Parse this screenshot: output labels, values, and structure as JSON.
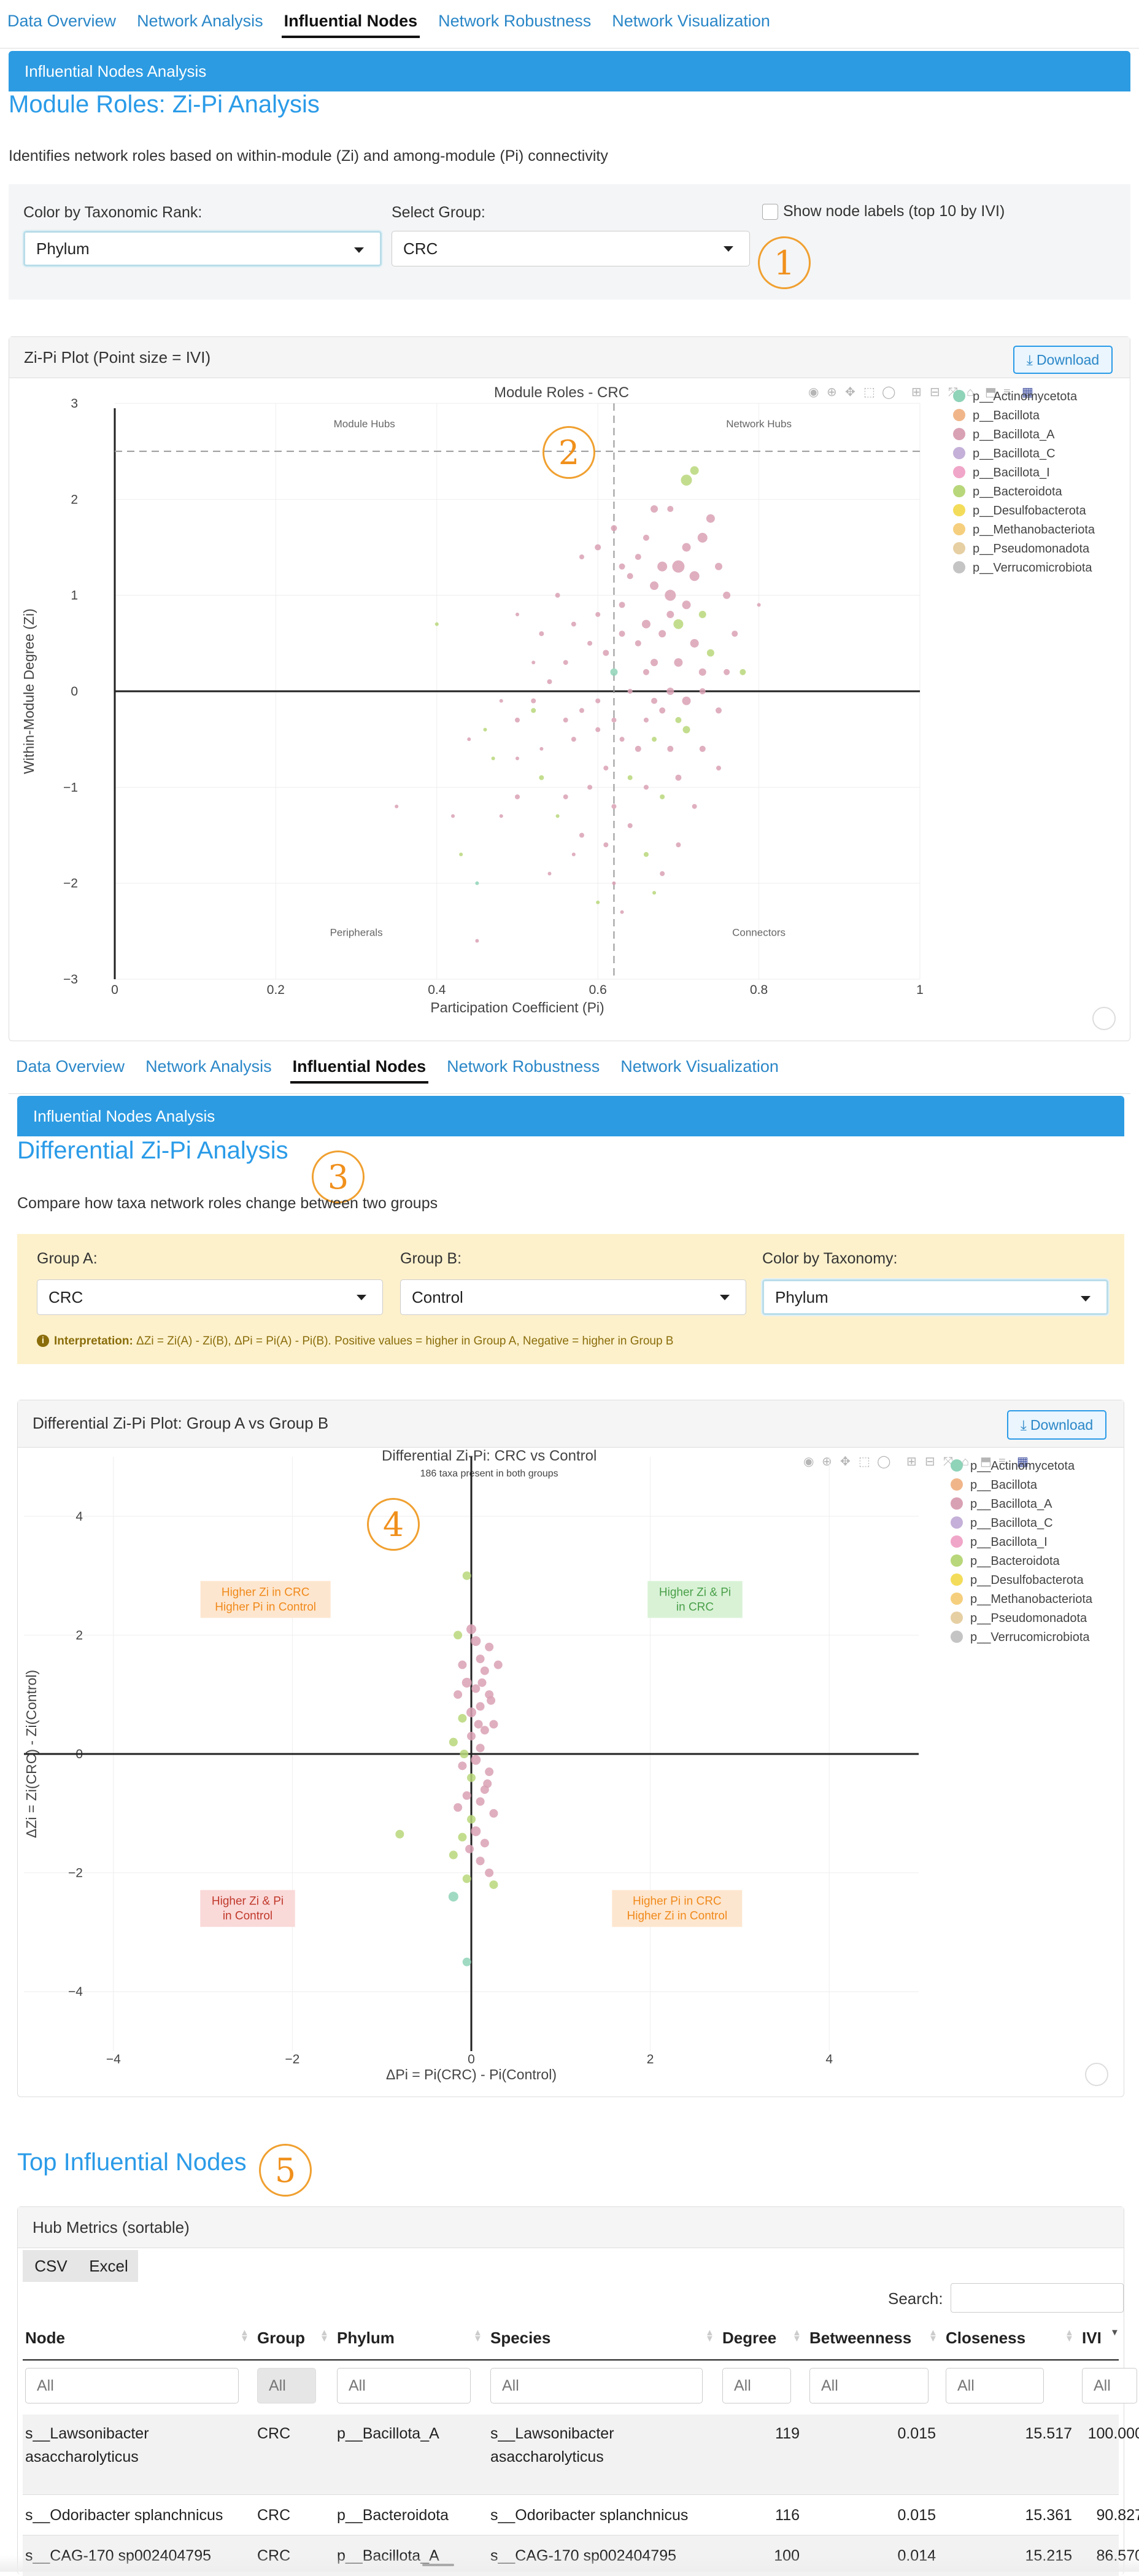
{
  "nav": {
    "tabs": [
      "Data Overview",
      "Network Analysis",
      "Influential Nodes",
      "Network Robustness",
      "Network Visualization"
    ],
    "active": "Influential Nodes"
  },
  "panel1": {
    "bar_title": "Influential Nodes Analysis",
    "title": "Module Roles: Zi-Pi Analysis",
    "description": "Identifies network roles based on within-module (Zi) and among-module (Pi) connectivity",
    "color_label": "Color by Taxonomic Rank:",
    "color_value": "Phylum",
    "group_label": "Select Group:",
    "group_value": "CRC",
    "show_labels": "Show node labels (top 10 by IVI)",
    "badge": "1",
    "card_title": "Zi-Pi Plot (Point size = IVI)",
    "download": "Download",
    "badge_plot": "2"
  },
  "panel2": {
    "bar_title": "Influential Nodes Analysis",
    "title": "Differential Zi-Pi Analysis",
    "badge": "3",
    "description": "Compare how taxa network roles change between two groups",
    "group_a_label": "Group A:",
    "group_a_value": "CRC",
    "group_b_label": "Group B:",
    "group_b_value": "Control",
    "color_label": "Color by Taxonomy:",
    "color_value": "Phylum",
    "interp_bold": "Interpretation:",
    "interp_text": " ΔZi = Zi(A) - Zi(B), ΔPi = Pi(A) - Pi(B). Positive values = higher in Group A, Negative = higher in Group B",
    "card_title": "Differential Zi-Pi Plot: Group A vs Group B",
    "download": "Download",
    "badge_plot": "4"
  },
  "panel3": {
    "title": "Top Influential Nodes",
    "badge": "5",
    "card_title": "Hub Metrics (sortable)",
    "csv": "CSV",
    "excel": "Excel",
    "search_label": "Search:",
    "columns": [
      "Node",
      "Group",
      "Phylum",
      "Species",
      "Degree",
      "Betweenness",
      "Closeness",
      "IVI"
    ],
    "filter_placeholder": "All",
    "rows": [
      {
        "node": "s__Lawsonibacter asaccharolyticus",
        "group": "CRC",
        "phylum": "p__Bacillota_A",
        "species": "s__Lawsonibacter asaccharolyticus",
        "degree": "119",
        "betweenness": "0.015",
        "closeness": "15.517",
        "ivi": "100.000"
      },
      {
        "node": "s__Odoribacter splanchnicus",
        "group": "CRC",
        "phylum": "p__Bacteroidota",
        "species": "s__Odoribacter splanchnicus",
        "degree": "116",
        "betweenness": "0.015",
        "closeness": "15.361",
        "ivi": "90.827"
      },
      {
        "node": "s__CAG-170 sp002404795",
        "group": "CRC",
        "phylum": "p__Bacillota_A",
        "species": "s__CAG-170 sp002404795",
        "degree": "100",
        "betweenness": "0.014",
        "closeness": "15.215",
        "ivi": "86.570"
      }
    ]
  },
  "legend": [
    {
      "name": "p__Actinomycetota",
      "color": "#8fd3b9"
    },
    {
      "name": "p__Bacillota",
      "color": "#f0b68a"
    },
    {
      "name": "p__Bacillota_A",
      "color": "#d9a1b4"
    },
    {
      "name": "p__Bacillota_C",
      "color": "#c4b0d8"
    },
    {
      "name": "p__Bacillota_I",
      "color": "#f0a6c8"
    },
    {
      "name": "p__Bacteroidota",
      "color": "#b8d77a"
    },
    {
      "name": "p__Desulfobacterota",
      "color": "#f3dc5a"
    },
    {
      "name": "p__Methanobacteriota",
      "color": "#f5cf7e"
    },
    {
      "name": "p__Pseudomonadota",
      "color": "#e6cfa3"
    },
    {
      "name": "p__Verrucomicrobiota",
      "color": "#c4c4c4"
    }
  ],
  "chart_data": [
    {
      "type": "scatter",
      "title": "Module Roles - CRC",
      "xlabel": "Participation Coefficient (Pi)",
      "ylabel": "Within-Module Degree (Zi)",
      "xlim": [
        0,
        1
      ],
      "ylim": [
        -3,
        3
      ],
      "xticks": [
        "0",
        "0.2",
        "0.4",
        "0.6",
        "0.8",
        "1"
      ],
      "yticks": [
        "3",
        "2",
        "1",
        "0",
        "−1",
        "−2",
        "−3"
      ],
      "zi_threshold": 2.5,
      "pi_threshold": 0.62,
      "quadrant_labels": [
        "Module Hubs",
        "Network Hubs",
        "Peripherals",
        "Connectors"
      ],
      "points": [
        [
          0.72,
          2.3,
          5,
          12
        ],
        [
          0.71,
          2.2,
          5,
          16
        ],
        [
          0.62,
          1.7,
          2,
          8
        ],
        [
          0.6,
          1.5,
          2,
          8
        ],
        [
          0.69,
          1.9,
          2,
          8
        ],
        [
          0.74,
          1.8,
          2,
          12
        ],
        [
          0.73,
          1.6,
          2,
          14
        ],
        [
          0.66,
          1.6,
          2,
          8
        ],
        [
          0.71,
          1.5,
          2,
          12
        ],
        [
          0.68,
          1.3,
          2,
          14
        ],
        [
          0.7,
          1.3,
          2,
          18
        ],
        [
          0.72,
          1.2,
          2,
          14
        ],
        [
          0.75,
          1.3,
          2,
          10
        ],
        [
          0.67,
          1.1,
          2,
          12
        ],
        [
          0.64,
          1.2,
          2,
          8
        ],
        [
          0.69,
          1.0,
          2,
          16
        ],
        [
          0.71,
          0.9,
          2,
          12
        ],
        [
          0.73,
          0.8,
          5,
          10
        ],
        [
          0.76,
          1.0,
          2,
          10
        ],
        [
          0.63,
          0.9,
          2,
          8
        ],
        [
          0.66,
          0.7,
          2,
          12
        ],
        [
          0.68,
          0.6,
          2,
          10
        ],
        [
          0.7,
          0.7,
          5,
          14
        ],
        [
          0.72,
          0.5,
          2,
          12
        ],
        [
          0.74,
          0.4,
          5,
          10
        ],
        [
          0.65,
          0.5,
          2,
          8
        ],
        [
          0.67,
          0.3,
          2,
          10
        ],
        [
          0.7,
          0.3,
          2,
          12
        ],
        [
          0.73,
          0.2,
          2,
          10
        ],
        [
          0.61,
          0.4,
          2,
          8
        ],
        [
          0.63,
          0.6,
          2,
          8
        ],
        [
          0.77,
          0.6,
          2,
          8
        ],
        [
          0.76,
          0.2,
          2,
          8
        ],
        [
          0.58,
          1.4,
          2,
          6
        ],
        [
          0.55,
          1.0,
          2,
          6
        ],
        [
          0.57,
          0.7,
          2,
          6
        ],
        [
          0.6,
          0.8,
          2,
          6
        ],
        [
          0.59,
          0.5,
          2,
          6
        ],
        [
          0.53,
          0.6,
          2,
          6
        ],
        [
          0.56,
          0.3,
          2,
          6
        ],
        [
          0.54,
          0.1,
          2,
          6
        ],
        [
          0.69,
          0.8,
          2,
          10
        ],
        [
          0.66,
          0.2,
          2,
          8
        ],
        [
          0.62,
          0.2,
          0,
          10
        ],
        [
          0.64,
          0.0,
          2,
          6
        ],
        [
          0.67,
          -0.1,
          2,
          8
        ],
        [
          0.69,
          0.0,
          2,
          10
        ],
        [
          0.71,
          -0.1,
          2,
          12
        ],
        [
          0.73,
          0.0,
          2,
          8
        ],
        [
          0.75,
          -0.2,
          2,
          8
        ],
        [
          0.7,
          -0.3,
          5,
          8
        ],
        [
          0.68,
          -0.2,
          2,
          8
        ],
        [
          0.66,
          -0.3,
          2,
          6
        ],
        [
          0.62,
          -0.3,
          2,
          6
        ],
        [
          0.6,
          -0.1,
          2,
          6
        ],
        [
          0.58,
          -0.2,
          2,
          6
        ],
        [
          0.56,
          -0.3,
          2,
          6
        ],
        [
          0.52,
          -0.2,
          5,
          6
        ],
        [
          0.5,
          -0.3,
          2,
          6
        ],
        [
          0.48,
          -0.1,
          2,
          4
        ],
        [
          0.46,
          -0.4,
          5,
          4
        ],
        [
          0.44,
          -0.5,
          2,
          4
        ],
        [
          0.47,
          -0.7,
          5,
          4
        ],
        [
          0.5,
          -0.7,
          2,
          4
        ],
        [
          0.53,
          -0.6,
          2,
          4
        ],
        [
          0.57,
          -0.5,
          2,
          6
        ],
        [
          0.6,
          -0.4,
          2,
          6
        ],
        [
          0.63,
          -0.5,
          2,
          6
        ],
        [
          0.65,
          -0.6,
          2,
          8
        ],
        [
          0.67,
          -0.5,
          5,
          6
        ],
        [
          0.69,
          -0.6,
          2,
          8
        ],
        [
          0.71,
          -0.4,
          5,
          10
        ],
        [
          0.73,
          -0.6,
          2,
          8
        ],
        [
          0.61,
          -0.8,
          2,
          6
        ],
        [
          0.64,
          -0.9,
          5,
          6
        ],
        [
          0.66,
          -1.0,
          2,
          6
        ],
        [
          0.68,
          -1.1,
          5,
          6
        ],
        [
          0.7,
          -0.9,
          2,
          8
        ],
        [
          0.72,
          -1.2,
          2,
          6
        ],
        [
          0.62,
          -1.2,
          2,
          6
        ],
        [
          0.59,
          -1.0,
          2,
          6
        ],
        [
          0.56,
          -1.1,
          2,
          6
        ],
        [
          0.53,
          -0.9,
          5,
          6
        ],
        [
          0.5,
          -1.1,
          2,
          6
        ],
        [
          0.48,
          -1.3,
          2,
          4
        ],
        [
          0.55,
          -1.3,
          5,
          4
        ],
        [
          0.58,
          -1.5,
          2,
          6
        ],
        [
          0.61,
          -1.6,
          2,
          6
        ],
        [
          0.64,
          -1.4,
          2,
          6
        ],
        [
          0.66,
          -1.7,
          5,
          6
        ],
        [
          0.68,
          -1.9,
          2,
          6
        ],
        [
          0.7,
          -1.6,
          2,
          6
        ],
        [
          0.62,
          -2.0,
          2,
          4
        ],
        [
          0.6,
          -2.2,
          5,
          4
        ],
        [
          0.57,
          -1.7,
          2,
          4
        ],
        [
          0.54,
          -1.9,
          2,
          4
        ],
        [
          0.63,
          -2.3,
          2,
          4
        ],
        [
          0.67,
          -2.1,
          5,
          4
        ],
        [
          0.43,
          -1.7,
          5,
          4
        ],
        [
          0.45,
          -2.0,
          0,
          4
        ],
        [
          0.42,
          -1.3,
          2,
          4
        ],
        [
          0.4,
          0.7,
          5,
          4
        ],
        [
          0.45,
          -2.6,
          2,
          4
        ],
        [
          0.35,
          -1.2,
          2,
          4
        ],
        [
          0.52,
          -0.1,
          2,
          6
        ],
        [
          0.65,
          1.4,
          2,
          8
        ],
        [
          0.67,
          1.9,
          2,
          10
        ],
        [
          0.63,
          1.3,
          2,
          8
        ],
        [
          0.75,
          -0.8,
          2,
          6
        ],
        [
          0.78,
          0.2,
          5,
          8
        ],
        [
          0.8,
          0.9,
          2,
          4
        ],
        [
          0.52,
          0.3,
          2,
          4
        ],
        [
          0.5,
          0.8,
          2,
          4
        ]
      ]
    },
    {
      "type": "scatter",
      "title": "Differential Zi-Pi: CRC vs Control",
      "subtitle": "186 taxa present in both groups",
      "xlabel": "ΔPi = Pi(CRC) - Pi(Control)",
      "ylabel": "ΔZi = Zi(CRC) - Zi(Control)",
      "xlim": [
        -5,
        5
      ],
      "ylim": [
        -5,
        5
      ],
      "xticks": [
        "−4",
        "−2",
        "0",
        "2",
        "4"
      ],
      "yticks": [
        "4",
        "2",
        "0",
        "−2",
        "−4"
      ],
      "quadrant_labels": [
        {
          "lines": [
            "Higher Zi in CRC",
            "Higher Pi in Control"
          ],
          "bg": "#fde6cf",
          "fg": "#f08a1c"
        },
        {
          "lines": [
            "Higher Zi & Pi",
            "in CRC"
          ],
          "bg": "#d9f2d6",
          "fg": "#4aa04a"
        },
        {
          "lines": [
            "Higher Zi & Pi",
            "in Control"
          ],
          "bg": "#fad9d9",
          "fg": "#c0392b"
        },
        {
          "lines": [
            "Higher Pi in CRC",
            "Higher Zi in Control"
          ],
          "bg": "#fde6cf",
          "fg": "#f08a1c"
        }
      ],
      "points": [
        [
          -0.05,
          3.0,
          5,
          8
        ],
        [
          0.0,
          2.1,
          2,
          10
        ],
        [
          -0.15,
          2.0,
          5,
          8
        ],
        [
          0.2,
          1.8,
          2,
          8
        ],
        [
          0.05,
          1.9,
          2,
          10
        ],
        [
          0.1,
          1.6,
          2,
          8
        ],
        [
          -0.1,
          1.5,
          2,
          8
        ],
        [
          0.15,
          1.4,
          2,
          8
        ],
        [
          0.3,
          1.5,
          2,
          8
        ],
        [
          -0.05,
          1.2,
          2,
          10
        ],
        [
          0.05,
          1.1,
          2,
          8
        ],
        [
          0.2,
          1.0,
          2,
          8
        ],
        [
          -0.15,
          1.0,
          2,
          8
        ],
        [
          0.1,
          0.8,
          2,
          8
        ],
        [
          0.0,
          0.7,
          2,
          10
        ],
        [
          -0.1,
          0.6,
          5,
          8
        ],
        [
          0.25,
          0.5,
          2,
          8
        ],
        [
          0.15,
          0.4,
          2,
          8
        ],
        [
          0.0,
          0.3,
          2,
          8
        ],
        [
          -0.2,
          0.2,
          5,
          8
        ],
        [
          0.1,
          0.1,
          2,
          8
        ],
        [
          0.05,
          -0.1,
          2,
          10
        ],
        [
          -0.1,
          -0.2,
          2,
          8
        ],
        [
          0.2,
          -0.3,
          2,
          8
        ],
        [
          0.0,
          -0.4,
          5,
          8
        ],
        [
          0.15,
          -0.6,
          2,
          8
        ],
        [
          -0.05,
          -0.7,
          2,
          8
        ],
        [
          0.1,
          -0.8,
          2,
          8
        ],
        [
          -0.15,
          -0.9,
          2,
          8
        ],
        [
          0.25,
          -1.0,
          2,
          8
        ],
        [
          0.0,
          -1.1,
          5,
          8
        ],
        [
          0.05,
          -1.3,
          2,
          10
        ],
        [
          -0.1,
          -1.4,
          5,
          8
        ],
        [
          0.15,
          -1.5,
          2,
          8
        ],
        [
          -0.2,
          -1.7,
          5,
          8
        ],
        [
          0.1,
          -1.8,
          2,
          8
        ],
        [
          0.2,
          -2.0,
          2,
          8
        ],
        [
          -0.05,
          -2.1,
          5,
          8
        ],
        [
          0.25,
          -2.2,
          5,
          8
        ],
        [
          -0.2,
          -2.4,
          0,
          10
        ],
        [
          -0.05,
          -3.5,
          0,
          8
        ],
        [
          -0.8,
          -1.35,
          5,
          8
        ],
        [
          0.12,
          1.2,
          2,
          8
        ],
        [
          0.08,
          0.5,
          2,
          8
        ],
        [
          -0.08,
          0.0,
          5,
          8
        ],
        [
          0.18,
          -0.5,
          2,
          8
        ],
        [
          -0.02,
          -1.6,
          2,
          8
        ],
        [
          0.22,
          0.9,
          2,
          8
        ]
      ]
    }
  ]
}
